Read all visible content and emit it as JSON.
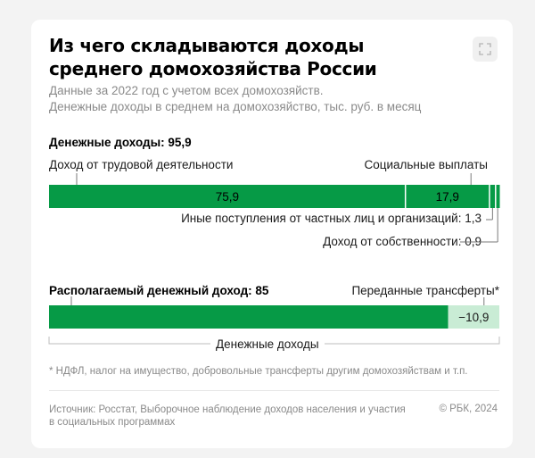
{
  "title": "Из чего складываются доходы среднего домохозяйства России",
  "subtitle_line1": "Данные за 2022 год с учетом всех домохозяйств.",
  "subtitle_line2": "Денежные доходы в среднем на домохозяйство, тыс. руб. в месяц",
  "footnote": "* НДФЛ, налог на имущество, добровольные трансферты другим домохозяйствам и т.п.",
  "source": "Источник: Росстат, Выборочное наблюдение доходов населения и участия в социальных программах",
  "copyright": "© РБК, 2024",
  "expand_icon": "expand-icon",
  "colors": {
    "dark_green": "#069a46",
    "light_green": "#c9ecd5",
    "label_green": "#000000",
    "leader": "#7a7a7a"
  },
  "chart_data": {
    "type": "bar",
    "stacked": true,
    "orientation": "horizontal",
    "bars": [
      {
        "title": "Денежные доходы: 95,9",
        "total": 95.9,
        "segments": [
          {
            "name": "Доход от трудовой деятельности",
            "value": 75.9,
            "value_label": "75,9",
            "color": "#069a46"
          },
          {
            "name": "Социальные выплаты",
            "value": 17.9,
            "value_label": "17,9",
            "color": "#069a46"
          },
          {
            "name": "Иные поступления от частных лиц и организаций: 1,3",
            "value": 1.3,
            "value_label": "",
            "color": "#069a46"
          },
          {
            "name": "Доход от собственности: 0,9",
            "value": 0.9,
            "value_label": "",
            "color": "#069a46"
          }
        ]
      },
      {
        "title": "Располагаемый денежный доход: 85",
        "total": 85,
        "segments": [
          {
            "name": "Располагаемый денежный доход",
            "value": 85,
            "value_label": "",
            "color": "#069a46"
          },
          {
            "name": "Переданные трансферты*",
            "value": 10.9,
            "value_label": "−10,9",
            "color": "#c9ecd5"
          }
        ]
      }
    ],
    "bracket_label": "Денежные доходы",
    "xlim": [
      0,
      95.9
    ]
  }
}
